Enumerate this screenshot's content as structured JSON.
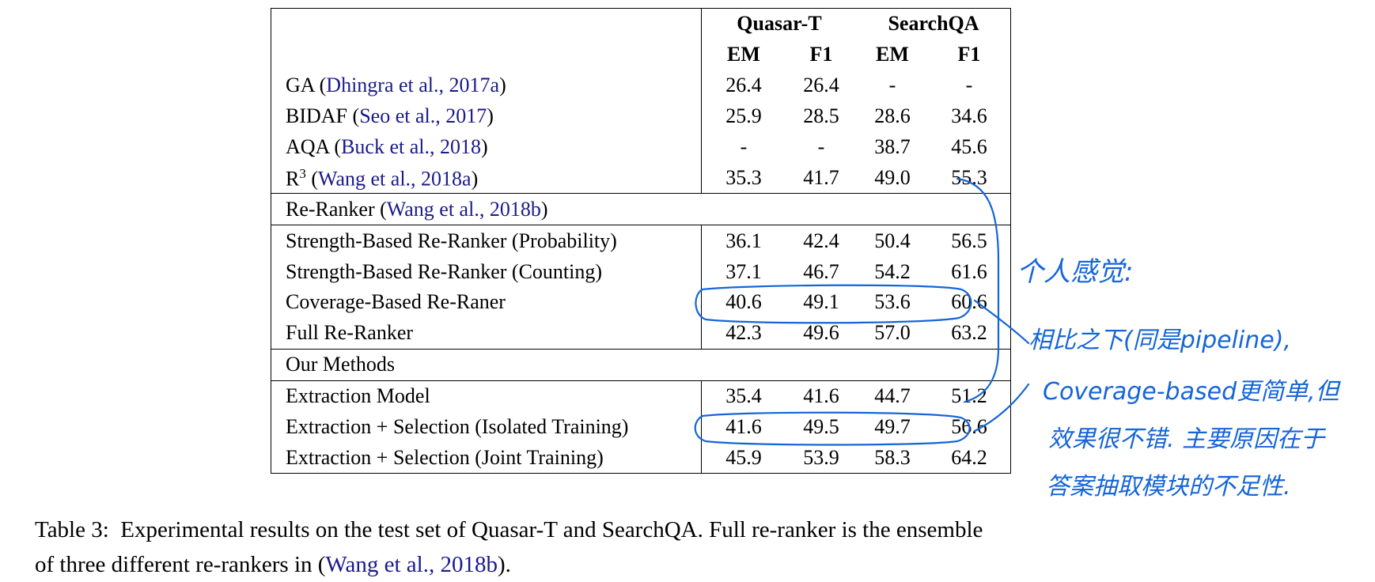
{
  "table": {
    "header": {
      "dataset1": "Quasar-T",
      "dataset2": "SearchQA",
      "metrics": [
        "EM",
        "F1",
        "EM",
        "F1"
      ]
    },
    "groups": [
      {
        "section_label": null,
        "rows": [
          {
            "model": "GA",
            "cite": "Dhingra et al., 2017a",
            "values": [
              "26.4",
              "26.4",
              "-",
              "-"
            ]
          },
          {
            "model": "BIDAF",
            "cite": "Seo et al., 2017",
            "values": [
              "25.9",
              "28.5",
              "28.6",
              "34.6"
            ]
          },
          {
            "model": "AQA",
            "cite": "Buck et al., 2018",
            "values": [
              "-",
              "-",
              "38.7",
              "45.6"
            ]
          },
          {
            "model": "R",
            "sup": "3",
            "cite": "Wang et al., 2018a",
            "values": [
              "35.3",
              "41.7",
              "49.0",
              "55.3"
            ]
          }
        ]
      },
      {
        "section_label": {
          "text": "Re-Ranker",
          "cite": "Wang et al., 2018b"
        },
        "rows": [
          {
            "model": "Strength-Based Re-Ranker (Probability)",
            "values": [
              "36.1",
              "42.4",
              "50.4",
              "56.5"
            ]
          },
          {
            "model": "Strength-Based Re-Ranker (Counting)",
            "values": [
              "37.1",
              "46.7",
              "54.2",
              "61.6"
            ]
          },
          {
            "model": "Coverage-Based Re-Raner",
            "values": [
              "40.6",
              "49.1",
              "53.6",
              "60.6"
            ]
          },
          {
            "model": "Full Re-Ranker",
            "values": [
              "42.3",
              "49.6",
              "57.0",
              "63.2"
            ]
          }
        ]
      },
      {
        "section_label": {
          "text": "Our Methods"
        },
        "rows": [
          {
            "model": "Extraction Model",
            "values": [
              "35.4",
              "41.6",
              "44.7",
              "51.2"
            ]
          },
          {
            "model": "Extraction + Selection (Isolated Training)",
            "values": [
              "41.6",
              "49.5",
              "49.7",
              "56.6"
            ]
          },
          {
            "model": "Extraction + Selection (Joint Training)",
            "values": [
              "45.9",
              "53.9",
              "58.3",
              "64.2"
            ],
            "bold": true
          }
        ]
      }
    ]
  },
  "caption": {
    "label": "Table 3:",
    "line1": "Experimental results on the test set of Quasar-T and SearchQA. Full re-ranker is the ensemble",
    "line2_pre": "of three different re-rankers in (",
    "line2_cite": "Wang et al., 2018b",
    "line2_post": ")."
  },
  "annotation": {
    "lines": [
      "个人感觉:",
      "相比之下(同是pipeline),",
      "Coverage-based更简单,但",
      "效果很不错. 主要原因在于",
      "答案抽取模块的不足性."
    ],
    "ink_color": "#1565d8"
  },
  "colors": {
    "citation": "#1a1a8c",
    "text": "#000000"
  }
}
